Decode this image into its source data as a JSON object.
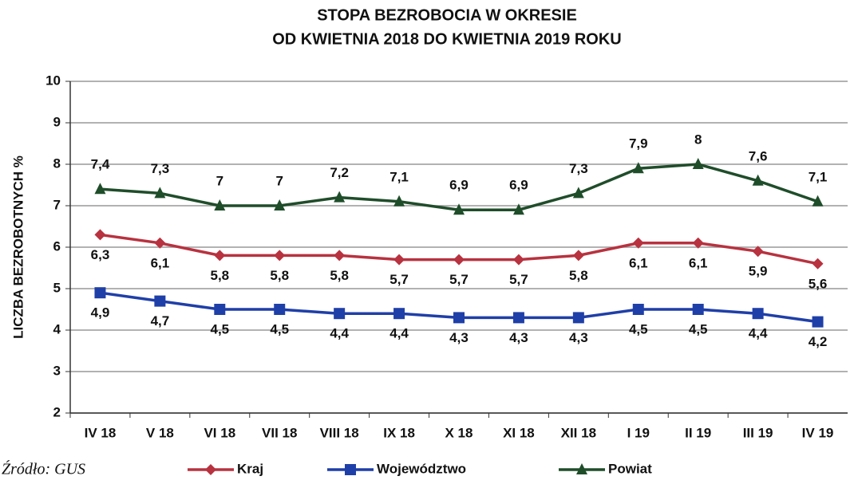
{
  "chart_data": {
    "type": "line",
    "title": [
      "STOPA BEZROBOCIA W OKRESIE",
      "OD KWIETNIA 2018 DO KWIETNIA 2019 ROKU"
    ],
    "y_label": "LICZBA BEZROBOTNYCH  %",
    "source": "Źródło: GUS",
    "categories": [
      "IV 18",
      "V 18",
      "VI 18",
      "VII 18",
      "VIII 18",
      "IX 18",
      "X 18",
      "XI 18",
      "XII 18",
      "I 19",
      "II 19",
      "III 19",
      "IV 19"
    ],
    "series": [
      {
        "name": "Kraj",
        "color": "#b8323f",
        "marker": "diamond",
        "label_position": "below",
        "values": [
          6.3,
          6.1,
          5.8,
          5.8,
          5.8,
          5.7,
          5.7,
          5.7,
          5.8,
          6.1,
          6.1,
          5.9,
          5.6
        ],
        "value_labels": [
          "6,3",
          "6,1",
          "5,8",
          "5,8",
          "5,8",
          "5,7",
          "5,7",
          "5,7",
          "5,8",
          "6,1",
          "6,1",
          "5,9",
          "5,6"
        ]
      },
      {
        "name": "Województwo",
        "color": "#1f3fa8",
        "marker": "square",
        "label_position": "below",
        "values": [
          4.9,
          4.7,
          4.5,
          4.5,
          4.4,
          4.4,
          4.3,
          4.3,
          4.3,
          4.5,
          4.5,
          4.4,
          4.2
        ],
        "value_labels": [
          "4,9",
          "4,7",
          "4,5",
          "4,5",
          "4,4",
          "4,4",
          "4,3",
          "4,3",
          "4,3",
          "4,5",
          "4,5",
          "4,4",
          "4,2"
        ]
      },
      {
        "name": "Powiat",
        "color": "#1f4d2a",
        "marker": "triangle",
        "label_position": "above",
        "values": [
          7.4,
          7.3,
          7,
          7,
          7.2,
          7.1,
          6.9,
          6.9,
          7.3,
          7.9,
          8,
          7.6,
          7.1
        ],
        "value_labels": [
          "7,4",
          "7,3",
          "7",
          "7",
          "7,2",
          "7,1",
          "6,9",
          "6,9",
          "7,3",
          "7,9",
          "8",
          "7,6",
          "7,1"
        ]
      }
    ],
    "ylim": [
      2,
      10
    ],
    "yticks": [
      2,
      3,
      4,
      5,
      6,
      7,
      8,
      9,
      10
    ],
    "grid": true
  }
}
